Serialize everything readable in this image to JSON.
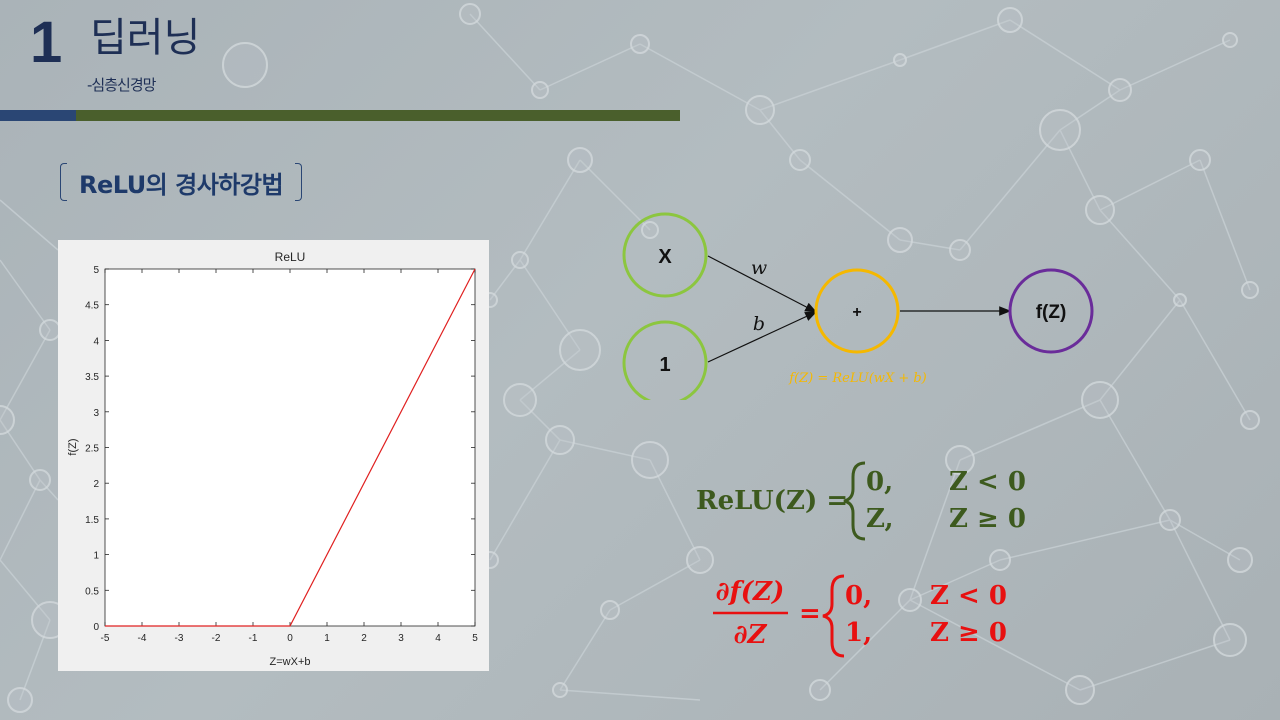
{
  "header": {
    "section_number": "1",
    "title": "딥러닝",
    "subtitle": "-심층신경망"
  },
  "section_label": "ReLU의 경사하강법",
  "chart_data": {
    "type": "line",
    "title": "ReLU",
    "xlabel": "Z=wX+b",
    "ylabel": "f(Z)",
    "xlim": [
      -5,
      5
    ],
    "ylim": [
      0,
      5
    ],
    "x_ticks": [
      "-5",
      "-4",
      "-3",
      "-2",
      "-1",
      "0",
      "1",
      "2",
      "3",
      "4",
      "5"
    ],
    "y_ticks": [
      "0",
      "0.5",
      "1",
      "1.5",
      "2",
      "2.5",
      "3",
      "3.5",
      "4",
      "4.5",
      "5"
    ],
    "series": [
      {
        "x": [
          -5,
          0,
          5
        ],
        "y": [
          0,
          0,
          5
        ],
        "color": "#e02020"
      }
    ],
    "grid": false
  },
  "diagram": {
    "node_x": "X",
    "node_1": "1",
    "node_sum": "+",
    "node_out": "f(Z)",
    "edge_w": "w",
    "edge_b": "b",
    "formula": "f(Z) = ReLU(wX + b)",
    "colors": {
      "input": "#8cc63f",
      "sum": "#f5b800",
      "output": "#6a2c9a",
      "formula": "#f5b800"
    }
  },
  "eq1": {
    "lhs": "ReLU(Z) =",
    "case1_val": "0,",
    "case1_cond": "Z < 0",
    "case2_val": "Z,",
    "case2_cond": "Z ≥ 0",
    "color": "#3d5a1e"
  },
  "eq2": {
    "num": "∂f(Z)",
    "den": "∂Z",
    "eq": "=",
    "case1_val": "0,",
    "case1_cond": "Z < 0",
    "case2_val": "1,",
    "case2_cond": "Z ≥ 0",
    "color": "#e81010"
  }
}
